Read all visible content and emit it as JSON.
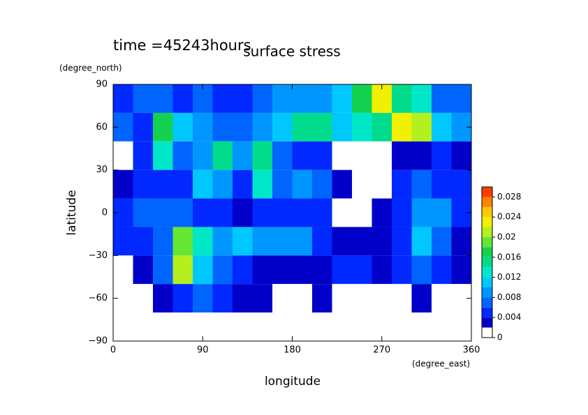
{
  "chart_data": {
    "type": "heatmap",
    "title": "surface stress",
    "subtitle": "time =45243hours",
    "x_label": "longitude",
    "x_unit": "(degree_east)",
    "y_label": "latitude",
    "y_unit": "(degree_north)",
    "xlim": [
      0,
      360
    ],
    "xticks": [
      0,
      90,
      180,
      270,
      360
    ],
    "ylim": [
      -90,
      90
    ],
    "yticks": [
      {
        "value": -90,
        "label": "−90"
      },
      {
        "value": -60,
        "label": "−60"
      },
      {
        "value": -30,
        "label": "−30"
      },
      0,
      30,
      60,
      90
    ],
    "x": [
      10,
      30,
      50,
      70,
      90,
      110,
      130,
      150,
      170,
      190,
      210,
      230,
      250,
      270,
      290,
      310,
      330,
      350
    ],
    "y": [
      80,
      60,
      40,
      20,
      0,
      -20,
      -40,
      -60,
      -80
    ],
    "cell_size": 20,
    "z": [
      [
        0.004,
        0.006,
        0.006,
        0.004,
        0.006,
        0.004,
        0.004,
        0.006,
        0.008,
        0.008,
        0.008,
        0.01,
        0.016,
        0.022,
        0.014,
        0.012,
        0.006,
        0.006
      ],
      [
        0.006,
        0.004,
        0.016,
        0.01,
        0.008,
        0.006,
        0.006,
        0.008,
        0.01,
        0.014,
        0.014,
        0.01,
        0.012,
        0.014,
        0.022,
        0.02,
        0.01,
        0.008
      ],
      [
        0,
        0.004,
        0.012,
        0.006,
        0.008,
        0.014,
        0.008,
        0.014,
        0.006,
        0.004,
        0.004,
        0,
        0,
        0,
        0.002,
        0.002,
        0.004,
        0.002
      ],
      [
        0.002,
        0.004,
        0.004,
        0.004,
        0.01,
        0.008,
        0.004,
        0.012,
        0.006,
        0.008,
        0.006,
        0.002,
        0,
        0,
        0.004,
        0.006,
        0.004,
        0.004
      ],
      [
        0.004,
        0.006,
        0.006,
        0.006,
        0.004,
        0.004,
        0.002,
        0.004,
        0.004,
        0.004,
        0.004,
        0,
        0,
        0.002,
        0.004,
        0.008,
        0.008,
        0.004
      ],
      [
        0.004,
        0.004,
        0.006,
        0.018,
        0.012,
        0.008,
        0.01,
        0.008,
        0.008,
        0.008,
        0.004,
        0.002,
        0.002,
        0.002,
        0.004,
        0.01,
        0.006,
        0.002
      ],
      [
        0,
        0.002,
        0.006,
        0.02,
        0.01,
        0.006,
        0.004,
        0.002,
        0.002,
        0.002,
        0.002,
        0.004,
        0.004,
        0.002,
        0.004,
        0.006,
        0.004,
        0.002
      ],
      [
        0,
        0,
        0.002,
        0.004,
        0.006,
        0.004,
        0.002,
        0.002,
        0,
        0,
        0.002,
        0,
        0,
        0,
        0,
        0.002,
        0,
        0
      ],
      [
        0,
        0,
        0,
        0,
        0,
        0,
        0,
        0,
        0,
        0,
        0,
        0,
        0,
        0,
        0,
        0,
        0,
        0
      ]
    ],
    "colorbar": {
      "levels": [
        0,
        0.002,
        0.004,
        0.006,
        0.008,
        0.01,
        0.012,
        0.014,
        0.016,
        0.018,
        0.02,
        0.022,
        0.024,
        0.026,
        0.028,
        0.03
      ],
      "colors": [
        "#ffffff",
        "#0000c8",
        "#0028ff",
        "#0064ff",
        "#0096ff",
        "#00c8ff",
        "#00e6c8",
        "#00dc8c",
        "#14d250",
        "#64e632",
        "#b4f01e",
        "#f0f000",
        "#ffc800",
        "#ff8200",
        "#ff3c00"
      ],
      "ticks": [
        0,
        0.004,
        0.008,
        0.012,
        0.016,
        0.02,
        0.024,
        0.028
      ]
    }
  }
}
